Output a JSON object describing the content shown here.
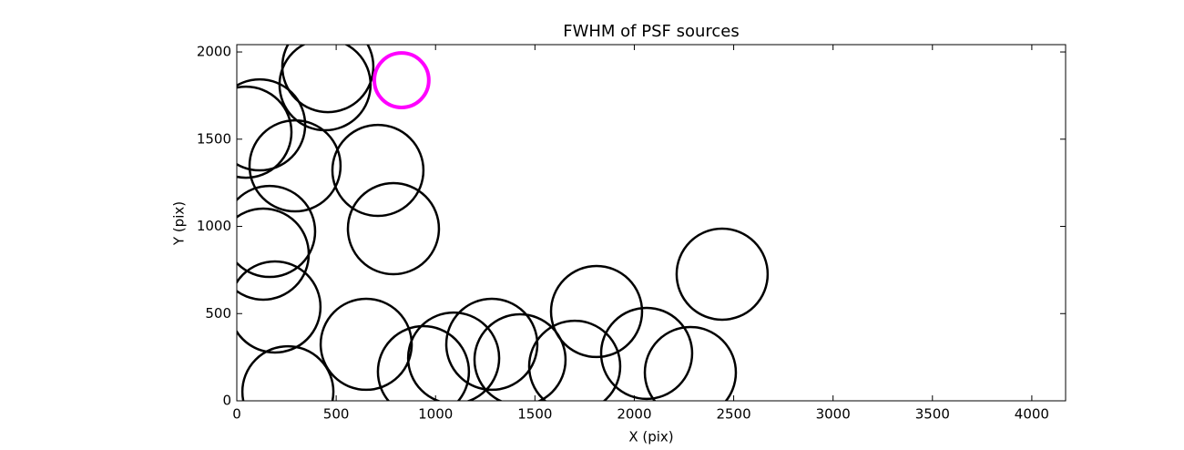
{
  "chart_data": {
    "type": "scatter",
    "title": "FWHM of PSF sources",
    "x_label": "X (pix)",
    "y_label": "Y (pix)",
    "x": [
      458,
      444,
      829,
      115,
      46,
      293,
      710,
      788,
      165,
      133,
      192,
      2442,
      1810,
      651,
      257,
      939,
      1091,
      1283,
      1425,
      1700,
      2062,
      2282
    ],
    "y": [
      1916,
      1812,
      1838,
      1582,
      1540,
      1347,
      1321,
      987,
      971,
      841,
      538,
      726,
      512,
      324,
      52,
      167,
      245,
      324,
      235,
      198,
      272,
      162
    ],
    "sizes": [
      229,
      229,
      137,
      229,
      229,
      229,
      229,
      229,
      229,
      229,
      229,
      229,
      229,
      229,
      229,
      229,
      229,
      229,
      229,
      229,
      229,
      229
    ],
    "colors": [
      "#000000",
      "#000000",
      "#ff00ff",
      "#000000",
      "#000000",
      "#000000",
      "#000000",
      "#000000",
      "#000000",
      "#000000",
      "#000000",
      "#000000",
      "#000000",
      "#000000",
      "#000000",
      "#000000",
      "#000000",
      "#000000",
      "#000000",
      "#000000",
      "#000000",
      "#000000"
    ],
    "xlim": [
      0,
      4170
    ],
    "ylim": [
      0,
      2042
    ],
    "xticks": [
      0,
      500,
      1000,
      1500,
      2000,
      2500,
      3000,
      3500,
      4000
    ],
    "yticks": [
      0,
      500,
      1000,
      1500,
      2000
    ]
  }
}
